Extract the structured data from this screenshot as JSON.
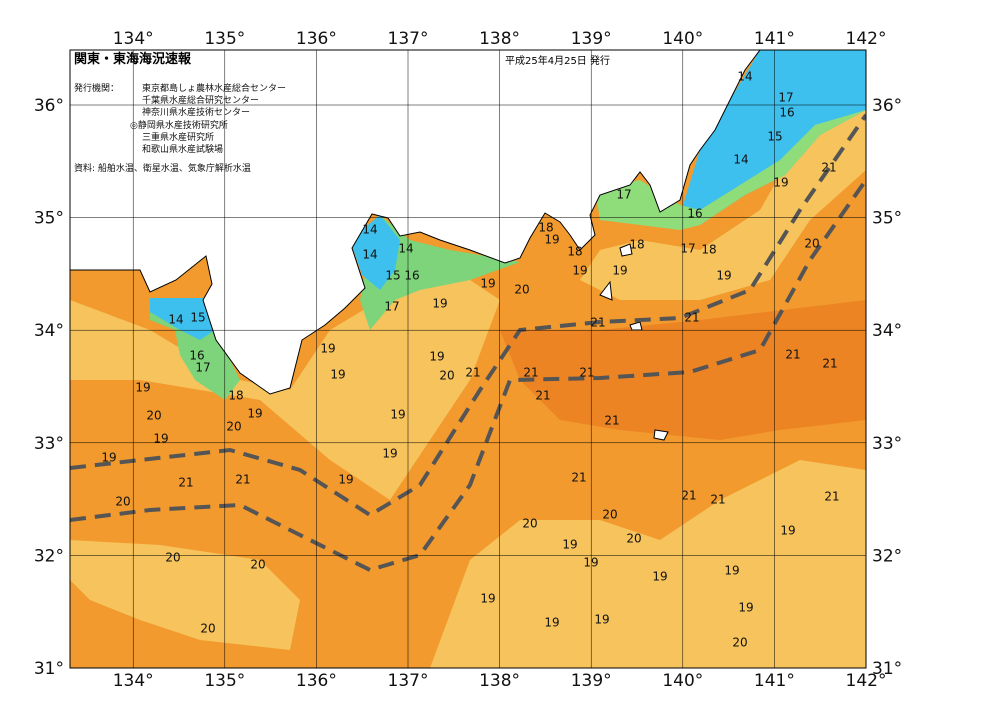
{
  "header": {
    "title": "関東・東海海況速報",
    "date": "平成25年4月25日 発行",
    "issuer_label": "発行機関：",
    "issuers": [
      "東京都島しょ農林水産総合センター",
      "千葉県水産総合研究センター",
      "神奈川県水産技術センター",
      "◎静岡県水産技術研究所",
      "三重県水産研究所",
      "和歌山県水産試験場"
    ],
    "source": "資料: 船舶水温、衛星水温、気象庁解析水温"
  },
  "lon_ticks": [
    {
      "value": 134,
      "label": "134°"
    },
    {
      "value": 135,
      "label": "135°"
    },
    {
      "value": 136,
      "label": "136°"
    },
    {
      "value": 137,
      "label": "137°"
    },
    {
      "value": 138,
      "label": "138°"
    },
    {
      "value": 139,
      "label": "139°"
    },
    {
      "value": 140,
      "label": "140°"
    },
    {
      "value": 141,
      "label": "141°"
    },
    {
      "value": 142,
      "label": "142°"
    }
  ],
  "lat_ticks": [
    {
      "value": 36,
      "label": "36°"
    },
    {
      "value": 35,
      "label": "35°"
    },
    {
      "value": 34,
      "label": "34°"
    },
    {
      "value": 33,
      "label": "33°"
    },
    {
      "value": 32,
      "label": "32°"
    },
    {
      "value": 31,
      "label": "31°"
    }
  ],
  "contour_labels": [
    14,
    17,
    16,
    15,
    14,
    21,
    19,
    16,
    17,
    18,
    19,
    18,
    18,
    17,
    18,
    14,
    14,
    14,
    15,
    16,
    17,
    19,
    20,
    19,
    19,
    19,
    20,
    19,
    21,
    21,
    14,
    15,
    16,
    17,
    19,
    19,
    19,
    20,
    21,
    21,
    21,
    21,
    21,
    21,
    19,
    18,
    20,
    19,
    20,
    19,
    19,
    21,
    19,
    19,
    19,
    21,
    21,
    21,
    21,
    20,
    20,
    21,
    21,
    20,
    19,
    19,
    20,
    20,
    20,
    19,
    19,
    19,
    19,
    19,
    19,
    19,
    20,
    20
  ]
}
